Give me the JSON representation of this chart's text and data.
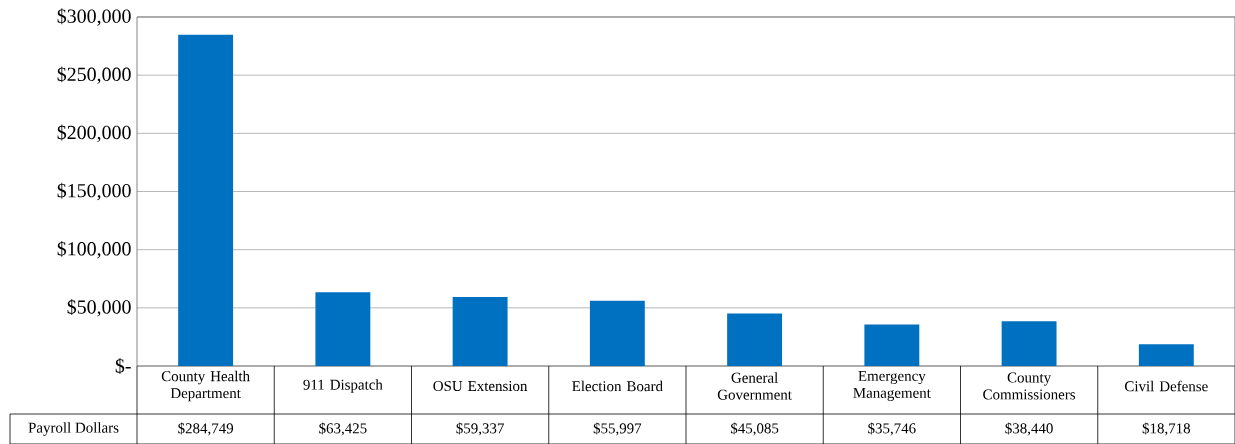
{
  "chart_data": {
    "type": "bar",
    "categories": [
      "County Health Department",
      "911 Dispatch",
      "OSU Extension",
      "Election Board",
      "General Government",
      "Emergency Management",
      "County Commissioners",
      "Civil Defense"
    ],
    "series": [
      {
        "name": "Payroll Dollars",
        "color": "#0070c0",
        "values": [
          284749,
          63425,
          59337,
          55997,
          45085,
          35746,
          38440,
          18718
        ],
        "value_labels": [
          "$284,749",
          "$63,425",
          "$59,337",
          "$55,997",
          "$45,085",
          "$35,746",
          "$38,440",
          "$18,718"
        ]
      }
    ],
    "ylim": [
      0,
      300000
    ],
    "yticks": [
      {
        "value": 0,
        "label": "$-"
      },
      {
        "value": 50000,
        "label": "$50,000"
      },
      {
        "value": 100000,
        "label": "$100,000"
      },
      {
        "value": 150000,
        "label": "$150,000"
      },
      {
        "value": 200000,
        "label": "$200,000"
      },
      {
        "value": 250000,
        "label": "$250,000"
      },
      {
        "value": 300000,
        "label": "$300,000"
      }
    ],
    "grid": "y"
  }
}
